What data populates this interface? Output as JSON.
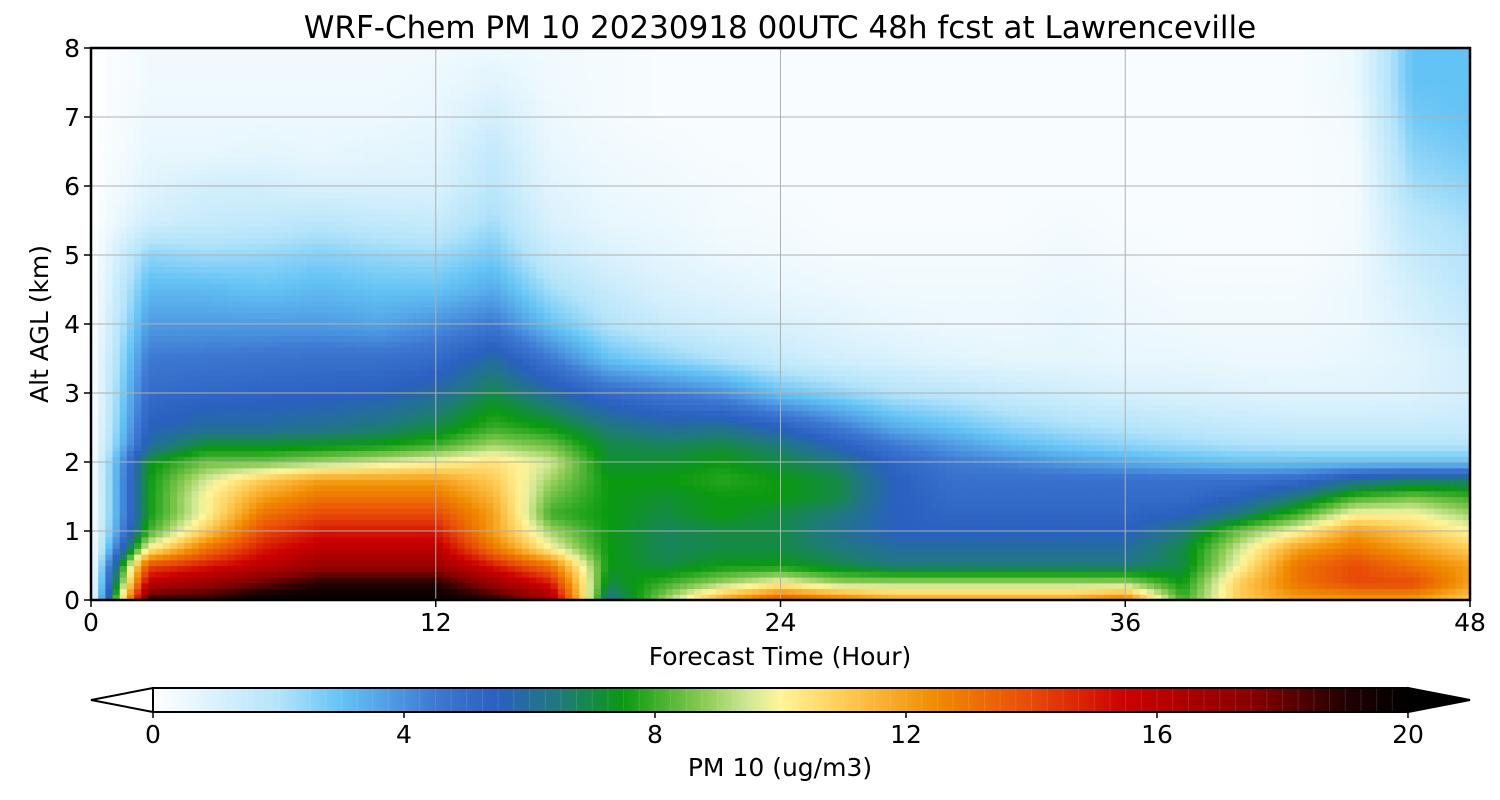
{
  "chart_data": {
    "type": "heatmap",
    "title": "WRF-Chem PM 10  20230918 00UTC 48h fcst at Lawrenceville",
    "xlabel": "Forecast Time (Hour)",
    "ylabel": "Alt AGL (km)",
    "xlim": [
      0,
      48
    ],
    "ylim": [
      0,
      8
    ],
    "xticks": [
      0,
      12,
      24,
      36,
      48
    ],
    "yticks": [
      0,
      1,
      2,
      3,
      4,
      5,
      6,
      7,
      8
    ],
    "grid": true,
    "x": [
      0,
      2,
      4,
      6,
      8,
      10,
      12,
      14,
      16,
      18,
      20,
      22,
      24,
      26,
      28,
      30,
      32,
      34,
      36,
      38,
      40,
      42,
      44,
      46,
      48
    ],
    "y": [
      0,
      0.25,
      0.5,
      0.75,
      1,
      1.25,
      1.5,
      1.75,
      2,
      2.25,
      2.5,
      3,
      3.5,
      4,
      4.5,
      5,
      5.5,
      6,
      6.5,
      7,
      7.5,
      8
    ],
    "z": [
      [
        0,
        19,
        19,
        20,
        20,
        20,
        20,
        19,
        17,
        6,
        9,
        12,
        14,
        13,
        12,
        12,
        12,
        12,
        13,
        8,
        11,
        12,
        12,
        12,
        11
      ],
      [
        0,
        16,
        17,
        18,
        19,
        19,
        19,
        17,
        15,
        7,
        8,
        9,
        10,
        9,
        9,
        9,
        9,
        9,
        9,
        7.5,
        11,
        13,
        14,
        14,
        12
      ],
      [
        0,
        14,
        15,
        16,
        17,
        17,
        17,
        15,
        13,
        7.5,
        7,
        7.5,
        7.5,
        7,
        6.5,
        6.5,
        6.5,
        6.5,
        6.5,
        7,
        10,
        13,
        14,
        13,
        12
      ],
      [
        0,
        10,
        13,
        15,
        16,
        16,
        16,
        13,
        10,
        7.5,
        6.8,
        7,
        7,
        6.5,
        6,
        6,
        6,
        6,
        6,
        7,
        9.5,
        12,
        13,
        12,
        11
      ],
      [
        0,
        8,
        11,
        14,
        15,
        15,
        15,
        12,
        9,
        7.5,
        6.8,
        7,
        7,
        6.2,
        5.5,
        5.5,
        5.5,
        5.5,
        5.5,
        6.5,
        8.5,
        10,
        12,
        11,
        10
      ],
      [
        0,
        7.5,
        10,
        13,
        14,
        14,
        14,
        12,
        8,
        7.5,
        7,
        7.5,
        7,
        6.5,
        5.5,
        5.2,
        5.2,
        5.2,
        5.2,
        5.5,
        6.5,
        8,
        10,
        10,
        9
      ],
      [
        0,
        7.5,
        10,
        12,
        13,
        13,
        13,
        11.5,
        8.5,
        7.5,
        7.2,
        7.5,
        7.5,
        7,
        5.5,
        5,
        5,
        5,
        5,
        5,
        5.5,
        6.5,
        8,
        8.5,
        8
      ],
      [
        0,
        7.5,
        9.5,
        11,
        12,
        12,
        12,
        11,
        9,
        7.5,
        7.5,
        7.8,
        7.5,
        7,
        5.5,
        4.8,
        4.8,
        4.8,
        4.8,
        4.8,
        4.8,
        5,
        6,
        6.5,
        6.5
      ],
      [
        0,
        7.3,
        8.5,
        8.5,
        9,
        9.5,
        10,
        10.5,
        9.5,
        7.2,
        7.2,
        7.5,
        7,
        6.5,
        5.2,
        4.5,
        4.2,
        3.8,
        3.5,
        3.2,
        3,
        3,
        3,
        3,
        3
      ],
      [
        0,
        6,
        7.2,
        7.2,
        7.3,
        7.5,
        8,
        9,
        8.5,
        7,
        6.8,
        7,
        6.5,
        5.5,
        4.5,
        3.8,
        3.2,
        2.8,
        2.5,
        2.3,
        2.1,
        2,
        2,
        2,
        2
      ],
      [
        0,
        5.5,
        6,
        6,
        6.2,
        6.5,
        7,
        8,
        7.5,
        6.5,
        6,
        6.2,
        5.5,
        4.5,
        3.5,
        3,
        2.5,
        2.2,
        2,
        1.8,
        1.6,
        1.5,
        1.5,
        1.5,
        1.5
      ],
      [
        0,
        5,
        5.2,
        5.3,
        5.4,
        5.5,
        6,
        7,
        6,
        5,
        4.5,
        4,
        3,
        2.5,
        2,
        1.8,
        1.5,
        1.3,
        1.1,
        1,
        0.9,
        0.8,
        0.8,
        0.9,
        1.2
      ],
      [
        0,
        4.5,
        4.6,
        4.7,
        4.8,
        4.8,
        5,
        6,
        4.5,
        3,
        2.5,
        2,
        1.5,
        1.2,
        1,
        0.8,
        0.7,
        0.7,
        0.6,
        0.6,
        0.5,
        0.5,
        0.6,
        0.8,
        1.2
      ],
      [
        0,
        3.8,
        3.8,
        3.8,
        3.8,
        3.6,
        4,
        4.5,
        3,
        2,
        1.5,
        1.2,
        1,
        0.8,
        0.6,
        0.5,
        0.5,
        0.6,
        0.5,
        0.4,
        0.4,
        0.4,
        0.5,
        1,
        1.5
      ],
      [
        0,
        3.2,
        3.2,
        3,
        3.2,
        3,
        3,
        3.5,
        2.2,
        1.5,
        1,
        0.8,
        0.6,
        0.5,
        0.4,
        0.4,
        0.4,
        0.5,
        0.4,
        0.3,
        0.3,
        0.3,
        0.5,
        1.2,
        1.8
      ],
      [
        0,
        2.5,
        2.3,
        2.4,
        2.6,
        2.4,
        2.3,
        2.8,
        1.5,
        1,
        0.7,
        0.5,
        0.4,
        0.3,
        0.3,
        0.3,
        0.3,
        0.4,
        0.3,
        0.2,
        0.2,
        0.2,
        0.4,
        1.5,
        2
      ],
      [
        0,
        1.2,
        1.5,
        1.6,
        1.8,
        1.6,
        1.5,
        2.2,
        1,
        0.6,
        0.5,
        0.3,
        0.3,
        0.2,
        0.2,
        0.2,
        0.2,
        0.3,
        0.2,
        0.2,
        0.2,
        0.2,
        0.3,
        1.8,
        2.2
      ],
      [
        0,
        0.8,
        1.2,
        1.2,
        1,
        1,
        1,
        1.8,
        0.8,
        0.5,
        0.4,
        0.3,
        0.2,
        0.2,
        0.2,
        0.2,
        0.2,
        0.2,
        0.2,
        0.2,
        0.2,
        0.2,
        0.3,
        2.2,
        2.5
      ],
      [
        0,
        0.6,
        0.6,
        0.7,
        0.6,
        0.7,
        0.8,
        1.6,
        0.6,
        0.4,
        0.3,
        0.2,
        0.2,
        0.2,
        0.2,
        0.2,
        0.2,
        0.2,
        0.2,
        0.2,
        0.2,
        0.2,
        0.3,
        2.5,
        2.8
      ],
      [
        0,
        0.5,
        0.5,
        0.5,
        0.5,
        0.5,
        0.6,
        1.2,
        0.5,
        0.3,
        0.2,
        0.2,
        0.2,
        0.2,
        0.2,
        0.2,
        0.2,
        0.2,
        0.2,
        0.2,
        0.2,
        0.2,
        0.4,
        2.8,
        3
      ],
      [
        0,
        0.4,
        0.4,
        0.4,
        0.4,
        0.4,
        0.5,
        0.8,
        0.4,
        0.3,
        0.2,
        0.2,
        0.2,
        0.2,
        0.2,
        0.2,
        0.2,
        0.2,
        0.2,
        0.2,
        0.2,
        0.2,
        0.5,
        3,
        3
      ],
      [
        0,
        0.4,
        0.4,
        0.4,
        0.4,
        0.4,
        0.4,
        0.5,
        0.4,
        0.3,
        0.2,
        0.2,
        0.2,
        0.2,
        0.2,
        0.2,
        0.2,
        0.2,
        0.2,
        0.2,
        0.2,
        0.2,
        0.5,
        3,
        3
      ]
    ],
    "colorbar": {
      "label": "PM 10  (ug/m3)",
      "min": 0,
      "max": 20,
      "ticks": [
        0,
        4,
        8,
        12,
        16,
        20
      ],
      "extend": "both",
      "stops": [
        {
          "v": 0,
          "c": "#ffffff"
        },
        {
          "v": 2,
          "c": "#b4e4fa"
        },
        {
          "v": 3,
          "c": "#64c3f5"
        },
        {
          "v": 4.5,
          "c": "#3d78d2"
        },
        {
          "v": 5.5,
          "c": "#2a60c0"
        },
        {
          "v": 6.5,
          "c": "#1f7a7a"
        },
        {
          "v": 7.5,
          "c": "#0a9a10"
        },
        {
          "v": 8.8,
          "c": "#8ccc55"
        },
        {
          "v": 9.5,
          "c": "#d2e896"
        },
        {
          "v": 10,
          "c": "#fff59a"
        },
        {
          "v": 11,
          "c": "#ffcc55"
        },
        {
          "v": 12.5,
          "c": "#f08a00"
        },
        {
          "v": 14,
          "c": "#e84a08"
        },
        {
          "v": 15.5,
          "c": "#cc0000"
        },
        {
          "v": 17.5,
          "c": "#880000"
        },
        {
          "v": 19,
          "c": "#220000"
        },
        {
          "v": 20,
          "c": "#000000"
        }
      ]
    }
  }
}
